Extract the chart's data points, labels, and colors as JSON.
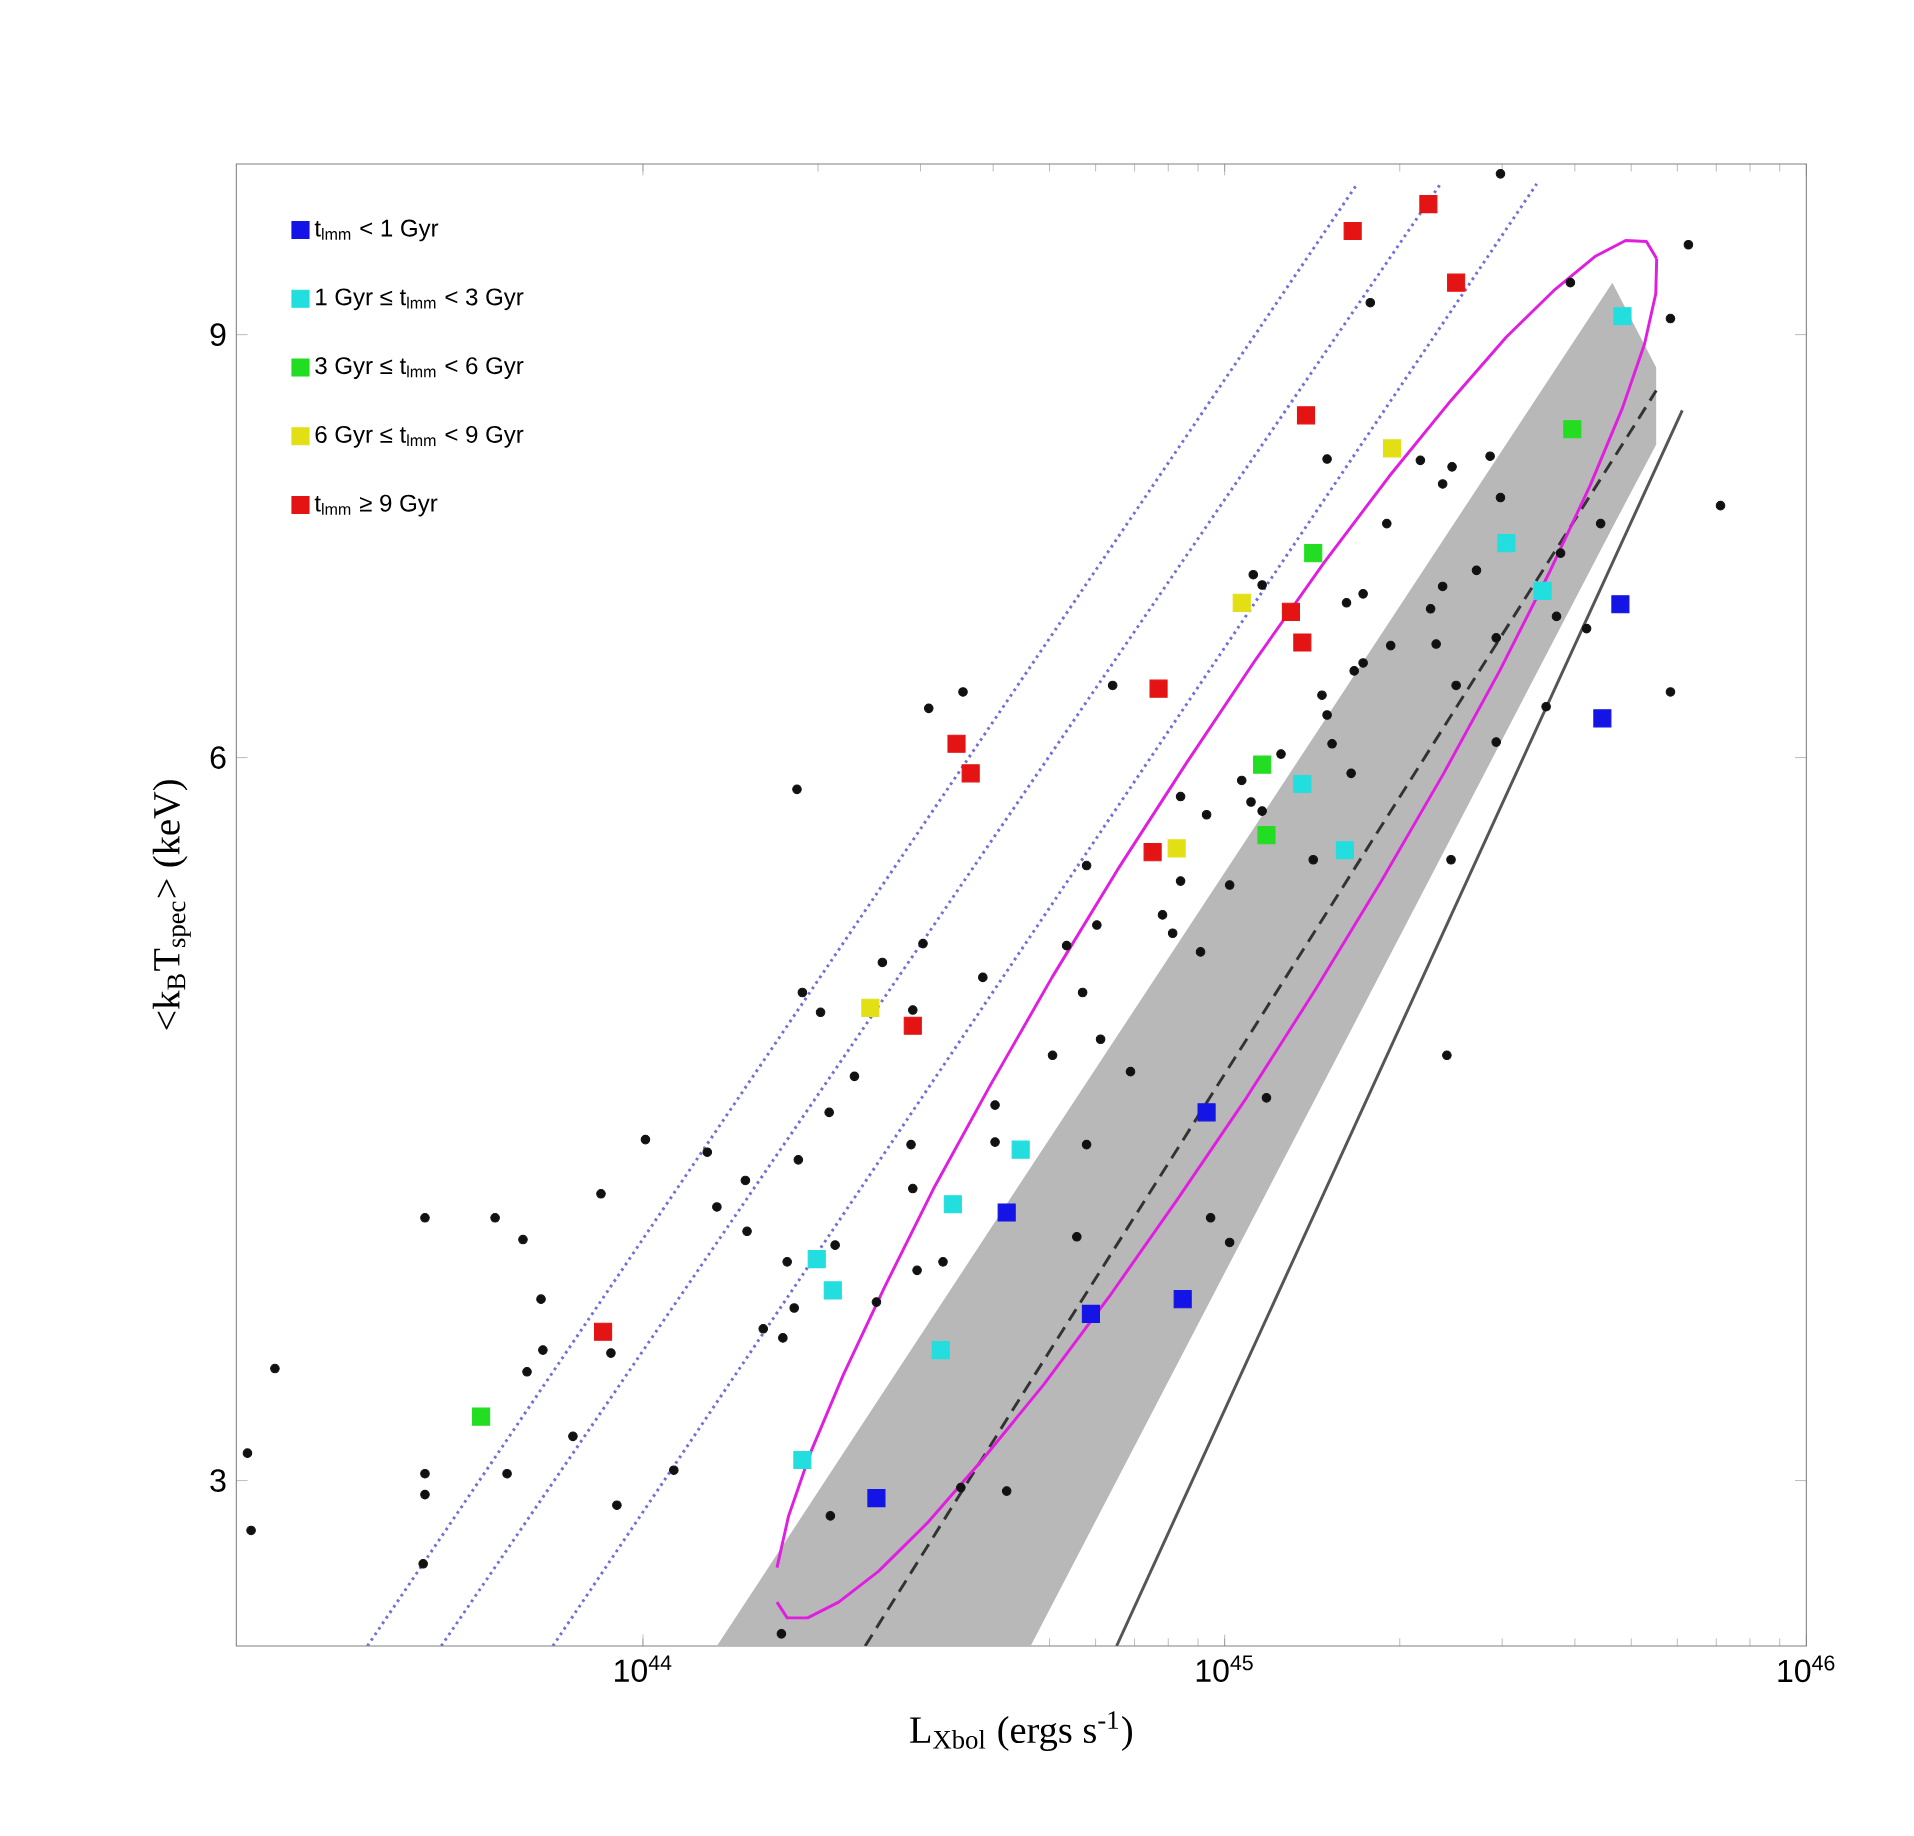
{
  "chart_data": {
    "type": "scatter",
    "xlabel": "L$_{Xbol}$ (ergs s$^{-1}$)",
    "ylabel": "<k$_{B}$T$_{spec}$> (keV)",
    "log": "xy",
    "legend": "top left",
    "xlim": [
      2e+43,
      1e+46
    ],
    "ylim": [
      2.56,
      10.6
    ],
    "xticks": [
      {
        "value": 1e+44,
        "label": "10$^{44}$"
      },
      {
        "value": 1e+45,
        "label": "10$^{45}$"
      },
      {
        "value": 1e+46,
        "label": "10$^{46}$"
      }
    ],
    "yticks": [
      3,
      6,
      9
    ],
    "series": [
      {
        "type": "line",
        "color": "#333333",
        "line_style": "dashed",
        "marker": "none",
        "x": [
          1.34e+44,
          2.41e+44,
          4.64e+44,
          4.64e+45,
          5.52e+45
        ],
        "values": [
          null,
          2.56,
          3.3,
          7.98,
          8.53
        ],
        "lower": [
          2.56,
          2.56,
          2.56,
          7.48,
          8.1
        ],
        "upper": [
          2.56,
          3.18,
          4.05,
          9.46,
          8.72
        ]
      },
      {
        "type": "line",
        "color": "#555555",
        "line_style": "solid",
        "marker": "none",
        "x": [
          6.52e+44,
          6.12e+45
        ],
        "values": [
          2.56,
          8.37
        ]
      },
      {
        "type": "line",
        "color": "#7070d8",
        "line_style": "dotted",
        "marker": "none",
        "x": [
          3.36e+43,
          1.69e+45
        ],
        "values": [
          2.56,
          10.4
        ]
      },
      {
        "type": "line",
        "color": "#7070d8",
        "line_style": "dotted",
        "marker": "none",
        "x": [
          4.5e+43,
          2.35e+45
        ],
        "values": [
          2.56,
          10.4
        ]
      },
      {
        "type": "line",
        "color": "#7070d8",
        "line_style": "dotted",
        "marker": "none",
        "x": [
          7e+43,
          3.44e+45
        ],
        "values": [
          2.56,
          10.4
        ]
      },
      {
        "type": "scatter",
        "color": "#111111",
        "marker": "circle",
        "x": [
          2.98e+45,
          6.27e+45,
          3.93e+45,
          1.78e+45,
          5.84e+45,
          1.5e+45,
          2.17e+45,
          2.46e+45,
          2.86e+45,
          2.37e+45,
          7.12e+45,
          2.98e+45,
          4.43e+45,
          1.9e+45,
          3.78e+45,
          2.71e+45,
          1.12e+45,
          1.16e+45,
          2.37e+45,
          1.62e+45,
          1.73e+45,
          2.26e+45,
          3.72e+45,
          4.19e+45,
          2.93e+45,
          1.93e+45,
          2.31e+45,
          1.73e+45,
          1.67e+45,
          6.42e+44,
          3.55e+44,
          3.1e+44,
          2.5e+45,
          5.84e+45,
          3.57e+45,
          1.47e+45,
          1.5e+45,
          2.93e+45,
          1.53e+45,
          1.25e+45,
          1.65e+45,
          1.07e+45,
          8.4e+44,
          1.11e+45,
          1.16e+45,
          9.31e+44,
          1.84e+44,
          5.79e+44,
          8.4e+44,
          1.02e+45,
          1.42e+45,
          2.45e+45,
          6.03e+44,
          7.82e+44,
          8.14e+44,
          3.03e+44,
          2.58e+44,
          5.35e+44,
          9.09e+44,
          3.84e+44,
          1.88e+44,
          2.02e+44,
          5.7e+44,
          6.12e+44,
          5.06e+44,
          2.41e+45,
          6.89e+44,
          1.18e+45,
          5.79e+44,
          9.46e+44,
          5.57e+44,
          1.02e+45,
          2.91e+44,
          2.31e+44,
          2.09e+44,
          4.03e+44,
          1.01e+44,
          1.29e+44,
          1.85e+44,
          2.89e+44,
          4.03e+44,
          1.5e+44,
          8.47e+43,
          2.91e+44,
          1.34e+44,
          4.22e+43,
          5.57e+43,
          6.22e+43,
          1.51e+44,
          2.14e+44,
          1.77e+44,
          2.96e+44,
          3.28e+44,
          6.68e+43,
          1.82e+44,
          1.61e+44,
          1.74e+44,
          6.73e+43,
          8.81e+43,
          2.33e+43,
          6.32e+43,
          2.52e+44,
          7.58e+43,
          2.09e+43,
          4.22e+43,
          5.84e+43,
          1.13e+44,
          4.22e+43,
          4.22e+44,
          3.52e+44,
          9.02e+43,
          2.1e+44,
          2.12e+43,
          4.19e+43,
          1.73e+44
        ],
        "values": [
          10.5,
          9.81,
          9.46,
          9.28,
          9.14,
          7.99,
          7.98,
          7.93,
          8.01,
          7.8,
          7.64,
          7.7,
          7.51,
          7.51,
          7.3,
          7.18,
          7.15,
          7.08,
          7.07,
          6.96,
          7.02,
          6.92,
          6.87,
          6.79,
          6.73,
          6.68,
          6.69,
          6.57,
          6.52,
          6.43,
          6.39,
          6.29,
          6.43,
          6.39,
          6.3,
          6.37,
          6.25,
          6.09,
          6.08,
          6.02,
          5.91,
          5.87,
          5.78,
          5.75,
          5.7,
          5.68,
          5.82,
          5.41,
          5.33,
          5.31,
          5.44,
          5.44,
          5.11,
          5.16,
          5.07,
          5.02,
          4.93,
          5.01,
          4.98,
          4.86,
          4.79,
          4.7,
          4.79,
          4.58,
          4.51,
          4.51,
          4.44,
          4.33,
          4.14,
          3.86,
          3.79,
          3.77,
          4.71,
          4.42,
          4.27,
          4.3,
          4.16,
          4.11,
          4.08,
          4.14,
          4.15,
          4,
          3.95,
          3.97,
          3.9,
          3.86,
          3.86,
          3.78,
          3.81,
          3.76,
          3.7,
          3.67,
          3.7,
          3.57,
          3.54,
          3.47,
          3.44,
          3.4,
          3.39,
          3.34,
          3.33,
          3.56,
          3.13,
          3.08,
          3.02,
          3.02,
          3.03,
          2.96,
          2.97,
          2.98,
          2.93,
          2.9,
          2.86,
          2.77,
          2.59
        ]
      },
      {
        "type": "scatter",
        "name": "t$_{lmm}$ < 1 Gyr",
        "color": "#1414e6",
        "marker": "square",
        "x": [
          2.52e+44,
          4.22e+44,
          5.89e+44,
          8.47e+44,
          9.31e+44,
          4.79e+45,
          4.46e+45
        ],
        "values": [
          2.95,
          3.88,
          3.52,
          3.57,
          4.27,
          6.95,
          6.23
        ]
      },
      {
        "type": "scatter",
        "name": "1 Gyr ≤ t$_{lmm}$ < 3 Gyr",
        "color": "#22dede",
        "marker": "square",
        "x": [
          4.46e+44,
          3.41e+44,
          1.99e+44,
          2.12e+44,
          3.25e+44,
          1.88e+44,
          4.83e+45,
          3.05e+45,
          3.52e+45,
          1.36e+45,
          1.61e+45
        ],
        "values": [
          4.12,
          3.91,
          3.71,
          3.6,
          3.4,
          3.06,
          9.16,
          7.37,
          7.04,
          5.85,
          5.49
        ]
      },
      {
        "type": "scatter",
        "name": "3 Gyr ≤ t$_{lmm}$ < 6 Gyr",
        "color": "#22dd22",
        "marker": "square",
        "x": [
          5.27e+43,
          3.96e+45,
          1.42e+45,
          1.16e+45,
          1.18e+45
        ],
        "values": [
          3.19,
          8.22,
          7.3,
          5.96,
          5.57
        ]
      },
      {
        "type": "scatter",
        "name": "6 Gyr ≤ t$_{lmm}$ < 9 Gyr",
        "color": "#e2e014",
        "marker": "square",
        "x": [
          2.46e+44,
          1.94e+45,
          1.07e+45,
          8.27e+44
        ],
        "values": [
          4.72,
          8.07,
          6.96,
          5.5
        ]
      },
      {
        "type": "scatter",
        "name": "t$_{lmm}$ ≥ 9 Gyr",
        "color": "#e41414",
        "marker": "square",
        "x": [
          8.54e+43,
          2.91e+44,
          3.46e+44,
          3.66e+44,
          7.52e+44,
          7.7e+44,
          1.3e+45,
          1.36e+45,
          1.38e+45,
          1.66e+45,
          2.24e+45,
          2.5e+45
        ],
        "values": [
          3.46,
          4.64,
          6.08,
          5.91,
          5.48,
          6.41,
          6.9,
          6.7,
          8.33,
          9.94,
          10.2,
          9.46
        ]
      },
      {
        "type": "line",
        "color": "#e01ee0",
        "line_style": "solid",
        "marker": "none",
        "x": [
          1.7e+44,
          1.77e+44,
          1.92e+44,
          2.17e+44,
          2.54e+44,
          3.08e+44,
          3.83e+44,
          4.89e+44,
          6.34e+44,
          8.3e+44,
          1.09e+45,
          1.43e+45,
          1.86e+45,
          2.38e+45,
          2.97e+45,
          3.61e+45,
          4.25e+45,
          4.83e+45,
          5.27e+45,
          5.51e+45,
          5.53e+45
        ],
        "values": [
          2.67,
          2.63,
          2.63,
          2.67,
          2.75,
          2.88,
          3.06,
          3.29,
          3.58,
          3.93,
          4.33,
          4.8,
          5.33,
          5.91,
          6.52,
          7.16,
          7.79,
          8.39,
          8.92,
          9.36,
          9.68
        ]
      },
      {
        "type": "line",
        "color": "#e01ee0",
        "line_style": "solid",
        "marker": "none",
        "x": [
          1.7e+44,
          1.78e+44,
          1.94e+44,
          2.21e+44,
          2.6e+44,
          3.16e+44,
          3.95e+44,
          5.05e+44,
          6.55e+44,
          8.6e+44,
          1.13e+45,
          1.48e+45,
          1.92e+45,
          2.45e+45,
          3.05e+45,
          3.7e+45,
          4.33e+45,
          4.89e+45,
          5.31e+45,
          5.53e+45
        ],
        "values": [
          2.76,
          2.9,
          3.08,
          3.32,
          3.61,
          3.97,
          4.38,
          4.86,
          5.39,
          5.97,
          6.59,
          7.23,
          7.86,
          8.45,
          8.98,
          9.4,
          9.7,
          9.85,
          9.84,
          9.68
        ]
      }
    ]
  }
}
